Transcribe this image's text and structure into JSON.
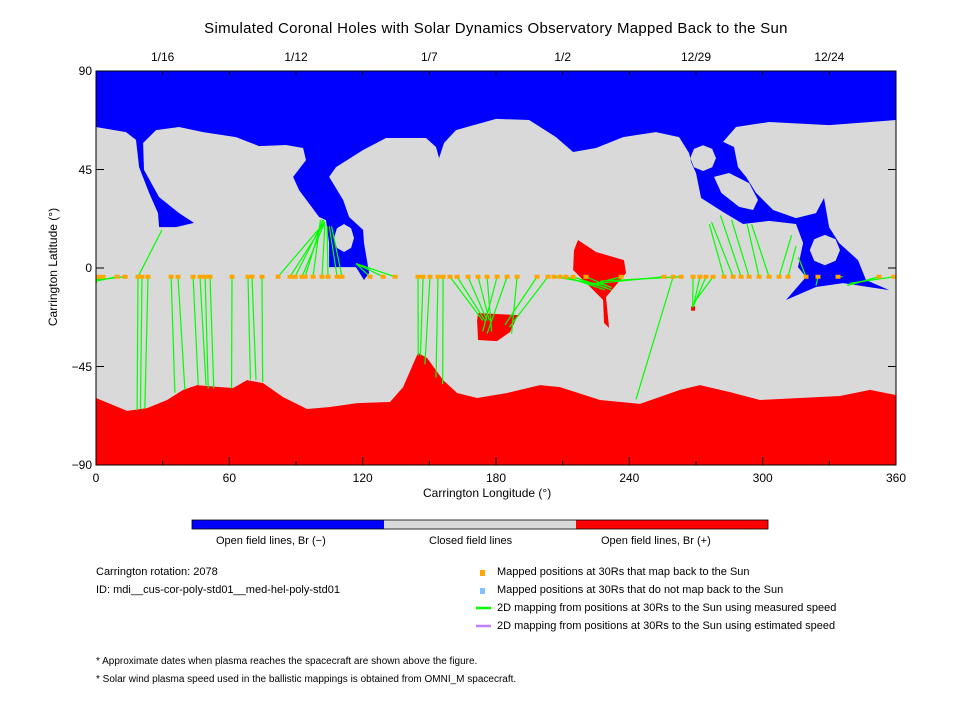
{
  "chart_data": {
    "type": "map",
    "title": "Simulated Coronal Holes with Solar Dynamics Observatory Mapped Back to the Sun",
    "xlabel": "Carrington Longitude (°)",
    "ylabel": "Carrington Latitude (°)",
    "xlim": [
      0,
      360
    ],
    "ylim": [
      -90,
      90
    ],
    "x_ticks": [
      "0",
      "60",
      "120",
      "180",
      "240",
      "300",
      "360"
    ],
    "x_tick_values": [
      0,
      60,
      120,
      180,
      240,
      300,
      360
    ],
    "y_ticks": [
      "90",
      "45",
      "0",
      "−45",
      "−90"
    ],
    "y_tick_values": [
      90,
      45,
      0,
      -45,
      -90
    ],
    "top_dates": [
      {
        "lon": 30,
        "label": "1/16"
      },
      {
        "lon": 90,
        "label": "1/12"
      },
      {
        "lon": 150,
        "label": "1/7"
      },
      {
        "lon": 210,
        "label": "1/2"
      },
      {
        "lon": 270,
        "label": "12/29"
      },
      {
        "lon": 330,
        "label": "12/24"
      }
    ],
    "colors": {
      "open_negative": "#0000ff",
      "closed": "#d9d9d9",
      "open_positive": "#ff0000",
      "mapped_point": "#ffa500",
      "unmapped_point": "#80c0ff",
      "measured_line": "#00ff00",
      "estimated_line": "#c080ff"
    },
    "regions": [
      {
        "name": "north-open-negative",
        "polarity": "negative",
        "points": [
          [
            0,
            90
          ],
          [
            0,
            64.4
          ],
          [
            13.5,
            62.1
          ],
          [
            18,
            58.5
          ],
          [
            19.4,
            46.1
          ],
          [
            23.9,
            34.3
          ],
          [
            27.9,
            25.1
          ],
          [
            28.4,
            18.7
          ],
          [
            36,
            18.7
          ],
          [
            44.1,
            20.6
          ],
          [
            37.4,
            25.1
          ],
          [
            28.4,
            32.4
          ],
          [
            21.6,
            44.8
          ],
          [
            21.2,
            57.1
          ],
          [
            27,
            63
          ],
          [
            37.4,
            64.4
          ],
          [
            48.2,
            62.1
          ],
          [
            63,
            59.8
          ],
          [
            73.4,
            55.7
          ],
          [
            85.5,
            56.2
          ],
          [
            93.2,
            54.8
          ],
          [
            94.5,
            49.3
          ],
          [
            88.7,
            41.6
          ],
          [
            91.4,
            35.6
          ],
          [
            100.4,
            23.3
          ],
          [
            103.5,
            21.9
          ],
          [
            104.9,
            11.4
          ],
          [
            104.9,
            0.4
          ],
          [
            117,
            0.4
          ],
          [
            120.6,
            -5.5
          ],
          [
            122.9,
            -2.3
          ],
          [
            120.6,
            11.4
          ],
          [
            120.2,
            17.4
          ],
          [
            113.9,
            23.3
          ],
          [
            111.2,
            31.1
          ],
          [
            104.9,
            41.6
          ],
          [
            108,
            46.1
          ],
          [
            120.2,
            53.9
          ],
          [
            130.5,
            59.4
          ],
          [
            148.5,
            59.4
          ],
          [
            153,
            55.3
          ],
          [
            154.4,
            50.2
          ],
          [
            156.6,
            57.1
          ],
          [
            162,
            63
          ],
          [
            180,
            68.1
          ],
          [
            194.9,
            67.6
          ],
          [
            207,
            59.8
          ],
          [
            214.7,
            53
          ],
          [
            225,
            54.8
          ],
          [
            237.2,
            59.8
          ],
          [
            252,
            62.1
          ],
          [
            262.4,
            59.8
          ],
          [
            266.9,
            52.5
          ],
          [
            267.8,
            48.4
          ],
          [
            270,
            43.4
          ],
          [
            272.3,
            32
          ],
          [
            282.2,
            25.6
          ],
          [
            291.2,
            20.1
          ],
          [
            302.9,
            21.5
          ],
          [
            315,
            20.1
          ],
          [
            318.2,
            11.4
          ],
          [
            315.9,
            0.4
          ],
          [
            319.5,
            -4.1
          ],
          [
            310.5,
            -14.6
          ],
          [
            324,
            -8.7
          ],
          [
            336.2,
            -6.9
          ],
          [
            356.9,
            -10.1
          ],
          [
            346.5,
            -5.5
          ],
          [
            342.9,
            3.6
          ],
          [
            334.4,
            11.4
          ],
          [
            329.9,
            18.7
          ],
          [
            327.6,
            32
          ],
          [
            324,
            25.1
          ],
          [
            315,
            22.8
          ],
          [
            304.7,
            26.5
          ],
          [
            297,
            34.3
          ],
          [
            292.5,
            41.6
          ],
          [
            288.9,
            46.1
          ],
          [
            287.1,
            55.3
          ],
          [
            282.2,
            57.6
          ],
          [
            288,
            64.4
          ],
          [
            302.9,
            66.7
          ],
          [
            329.9,
            65.3
          ],
          [
            360,
            67.6
          ],
          [
            360,
            90
          ]
        ]
      },
      {
        "name": "south-open-positive",
        "polarity": "positive",
        "points": [
          [
            0,
            -90
          ],
          [
            0,
            -59.4
          ],
          [
            14,
            -65.3
          ],
          [
            23,
            -64
          ],
          [
            32,
            -60.3
          ],
          [
            39.2,
            -55.7
          ],
          [
            45.5,
            -53.5
          ],
          [
            55.8,
            -54.4
          ],
          [
            61.7,
            -54.8
          ],
          [
            68,
            -51.2
          ],
          [
            75.2,
            -52.6
          ],
          [
            84.2,
            -59
          ],
          [
            95,
            -64.4
          ],
          [
            105.3,
            -63.5
          ],
          [
            117.5,
            -61.7
          ],
          [
            132.3,
            -61.2
          ],
          [
            138.2,
            -54.4
          ],
          [
            144.9,
            -38.8
          ],
          [
            149,
            -41.1
          ],
          [
            156.2,
            -51.2
          ],
          [
            162.5,
            -57.1
          ],
          [
            171.5,
            -59.4
          ],
          [
            185,
            -57.1
          ],
          [
            199.8,
            -53.5
          ],
          [
            208.8,
            -54.4
          ],
          [
            226.8,
            -60.3
          ],
          [
            244.8,
            -62.1
          ],
          [
            262.8,
            -55.7
          ],
          [
            271.8,
            -53.5
          ],
          [
            285.3,
            -56.7
          ],
          [
            298.8,
            -60.3
          ],
          [
            316.8,
            -59.4
          ],
          [
            334.8,
            -58.5
          ],
          [
            348.3,
            -55.7
          ],
          [
            360,
            -58
          ],
          [
            360,
            -90
          ]
        ]
      },
      {
        "name": "mid-open-positive-1",
        "polarity": "positive",
        "points": [
          [
            171.5,
            -23.8
          ],
          [
            171.9,
            -20.6
          ],
          [
            189.9,
            -21.5
          ],
          [
            186.3,
            -29.3
          ],
          [
            180.5,
            -33.4
          ],
          [
            171.9,
            -32.9
          ]
        ]
      },
      {
        "name": "mid-open-positive-2",
        "polarity": "positive",
        "points": [
          [
            216.9,
            12.8
          ],
          [
            225,
            7.3
          ],
          [
            237.6,
            3.6
          ],
          [
            238.5,
            -2.3
          ],
          [
            229.5,
            -13.3
          ],
          [
            230.9,
            -27.4
          ],
          [
            228.6,
            -25.1
          ],
          [
            228.2,
            -14.6
          ],
          [
            223.7,
            -10
          ],
          [
            214.7,
            -0.9
          ],
          [
            215.1,
            8.2
          ]
        ]
      },
      {
        "name": "mid-open-positive-3",
        "polarity": "positive",
        "points": [
          [
            267.8,
            -17.5
          ],
          [
            269.6,
            -17.5
          ],
          [
            269.6,
            -19.5
          ],
          [
            267.8,
            -19.5
          ]
        ]
      },
      {
        "name": "closed-hole-1",
        "polarity": "closed",
        "points": [
          [
            111.6,
            20.1
          ],
          [
            114.8,
            18.2
          ],
          [
            116.1,
            13.7
          ],
          [
            114.8,
            9.2
          ],
          [
            111.6,
            7.3
          ],
          [
            108.4,
            9.2
          ],
          [
            107.1,
            13.7
          ],
          [
            108.4,
            18.2
          ]
        ]
      },
      {
        "name": "closed-hole-2",
        "polarity": "closed",
        "points": [
          [
            273.2,
            56.1
          ],
          [
            277.3,
            54.4
          ],
          [
            279,
            50.2
          ],
          [
            277.3,
            46
          ],
          [
            273.2,
            44.3
          ],
          [
            269.1,
            46
          ],
          [
            267.4,
            50.2
          ],
          [
            269.1,
            54.4
          ]
        ]
      },
      {
        "name": "closed-hole-3",
        "polarity": "closed",
        "points": [
          [
            278.1,
            41.6
          ],
          [
            284.9,
            43.4
          ],
          [
            293.9,
            38.8
          ],
          [
            297.9,
            31.1
          ],
          [
            295.7,
            26.5
          ],
          [
            289.4,
            27.9
          ],
          [
            281.4,
            34.3
          ]
        ]
      },
      {
        "name": "closed-hole-4",
        "polarity": "closed",
        "points": [
          [
            328,
            15.1
          ],
          [
            332.8,
            13.1
          ],
          [
            334.8,
            8.2
          ],
          [
            332.8,
            3.3
          ],
          [
            328,
            1.3
          ],
          [
            323.2,
            3.3
          ],
          [
            321.2,
            8.2
          ],
          [
            323.2,
            13.1
          ]
        ]
      }
    ],
    "mapped_lat": -4,
    "mappings": [
      [
        0.9,
        0,
        -7
      ],
      [
        3.2,
        0,
        -6
      ],
      [
        9.5,
        0,
        -6
      ],
      [
        13.1,
        0,
        -5.5
      ],
      [
        18.9,
        18.5,
        -65
      ],
      [
        18.9,
        29.7,
        17.4
      ],
      [
        20.7,
        20,
        -64.5
      ],
      [
        23.4,
        22,
        -64
      ],
      [
        33.8,
        35.5,
        -57
      ],
      [
        36.9,
        40,
        -55.7
      ],
      [
        43.7,
        46,
        -53.5
      ],
      [
        46.8,
        49.5,
        -53.5
      ],
      [
        49.1,
        50.5,
        -55
      ],
      [
        51.3,
        53,
        -55
      ],
      [
        61.2,
        61,
        -55
      ],
      [
        68.4,
        69.5,
        -51
      ],
      [
        70.2,
        72,
        -51
      ],
      [
        74.7,
        75,
        -52
      ],
      [
        81.9,
        103,
        21
      ],
      [
        87.3,
        103,
        21
      ],
      [
        89.6,
        102.5,
        22
      ],
      [
        92.7,
        103,
        21
      ],
      [
        94.1,
        102,
        22
      ],
      [
        97.7,
        101,
        22
      ],
      [
        101.7,
        103,
        20
      ],
      [
        104.4,
        104,
        19
      ],
      [
        108.5,
        105,
        19
      ],
      [
        110.7,
        106,
        19
      ],
      [
        123.3,
        117,
        2
      ],
      [
        129.2,
        117,
        2
      ],
      [
        134.6,
        117,
        2
      ],
      [
        144.9,
        145,
        -40
      ],
      [
        147.2,
        146,
        -40
      ],
      [
        150.3,
        148,
        -44
      ],
      [
        153.9,
        153,
        -50
      ],
      [
        156.2,
        156,
        -53
      ],
      [
        159.3,
        174,
        -24
      ],
      [
        162.5,
        175,
        -24
      ],
      [
        167.4,
        176,
        -24
      ],
      [
        171.9,
        177,
        -24
      ],
      [
        176,
        178,
        -29
      ],
      [
        180.5,
        174,
        -29
      ],
      [
        185,
        176,
        -30
      ],
      [
        189.5,
        187,
        -30
      ],
      [
        198.5,
        184,
        -26
      ],
      [
        203.4,
        186,
        -27
      ],
      [
        206.1,
        230,
        -8
      ],
      [
        208.8,
        230,
        -9
      ],
      [
        211.5,
        229,
        -10
      ],
      [
        214.7,
        232,
        -10
      ],
      [
        220.5,
        232,
        -9
      ],
      [
        236.3,
        225,
        -7
      ],
      [
        255.6,
        226,
        -7
      ],
      [
        259.7,
        243,
        -60
      ],
      [
        263.3,
        227,
        -6
      ],
      [
        268.7,
        268.5,
        -18
      ],
      [
        271.8,
        268.7,
        -18
      ],
      [
        274.5,
        269,
        -17
      ],
      [
        277.7,
        269,
        -16
      ],
      [
        282.6,
        276,
        20
      ],
      [
        286.7,
        277,
        21
      ],
      [
        290.3,
        281,
        24
      ],
      [
        293.9,
        286,
        22
      ],
      [
        298.4,
        293,
        20
      ],
      [
        302.9,
        295,
        20
      ],
      [
        307.4,
        313,
        15
      ],
      [
        311.4,
        315,
        10
      ],
      [
        319.5,
        316,
        5
      ],
      [
        324.9,
        324,
        -8
      ],
      [
        333.9,
        336,
        -4
      ],
      [
        352.4,
        338,
        -8
      ],
      [
        359.1,
        339,
        -7
      ]
    ],
    "colorbar": [
      "Open field lines, Br (−)",
      "Closed field lines",
      "Open field lines, Br (+)"
    ]
  },
  "info": {
    "rotation": "Carrington rotation: 2078",
    "id": "ID: mdi__cus-cor-poly-std01__med-hel-poly-std01"
  },
  "legend": [
    "Mapped positions at 30Rs that map back to the Sun",
    "Mapped positions at 30Rs that do not map back to the Sun",
    "2D mapping from positions at 30Rs to the Sun using measured speed",
    "2D mapping from positions at 30Rs to the Sun using estimated speed"
  ],
  "notes": [
    "* Approximate dates when plasma reaches the spacecraft are shown above the figure.",
    "* Solar wind plasma speed used in the ballistic mappings is obtained from OMNI_M spacecraft."
  ]
}
